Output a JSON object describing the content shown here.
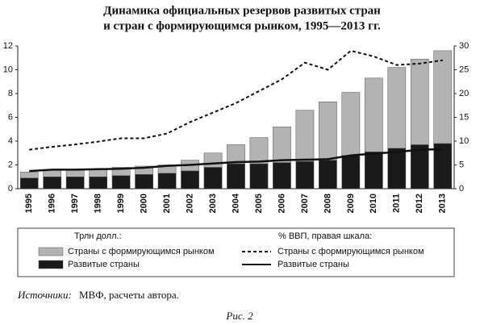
{
  "chart_data": {
    "type": "combo",
    "title_lines": [
      "Динамика официальных резервов развитых стран",
      "и стран с формирующимся рынком, 1995—2013 гг."
    ],
    "categories": [
      "1995",
      "1996",
      "1997",
      "1998",
      "1999",
      "2000",
      "2001",
      "2002",
      "2003",
      "2004",
      "2005",
      "2006",
      "2007",
      "2008",
      "2009",
      "2010",
      "2011",
      "2012",
      "2013"
    ],
    "stacked": true,
    "series": [
      {
        "name": "Страны с формирующимся рынком",
        "type": "bar",
        "color": "#b3b3b3",
        "values": [
          0.5,
          0.6,
          0.6,
          0.6,
          0.7,
          0.7,
          0.7,
          0.9,
          1.2,
          1.6,
          2.2,
          3.0,
          4.3,
          4.9,
          5.3,
          6.2,
          6.8,
          7.2,
          7.8
        ]
      },
      {
        "name": "Развитые страны",
        "type": "bar",
        "color": "#1a1a1a",
        "values": [
          0.9,
          1.0,
          1.0,
          1.0,
          1.1,
          1.2,
          1.3,
          1.5,
          1.8,
          2.1,
          2.1,
          2.2,
          2.3,
          2.4,
          2.8,
          3.1,
          3.4,
          3.7,
          3.8
        ]
      },
      {
        "name": "Страны с формирующимся рынком",
        "type": "line",
        "axis": "y2",
        "dash": "dashed",
        "color": "#111111",
        "values": [
          8.2,
          8.8,
          9.3,
          9.9,
          10.6,
          10.6,
          11.6,
          14,
          16,
          18,
          20.5,
          23,
          26.5,
          25,
          29,
          27.8,
          26,
          26.3,
          27
        ]
      },
      {
        "name": "Развитые страны",
        "type": "line",
        "axis": "y2",
        "dash": "solid",
        "color": "#111111",
        "values": [
          3.7,
          4.0,
          4.0,
          4.1,
          4.2,
          4.4,
          4.8,
          5.0,
          5.3,
          5.6,
          5.7,
          6.0,
          6.1,
          6.2,
          7.0,
          7.4,
          7.7,
          8.2,
          8.3
        ]
      }
    ],
    "ylim": [
      0,
      12
    ],
    "yticks": [
      0,
      2,
      4,
      6,
      8,
      10,
      12
    ],
    "y2lim": [
      0,
      30
    ],
    "y2ticks": [
      0,
      5,
      10,
      15,
      20,
      25,
      30
    ],
    "legend_titles": {
      "bars": "Трлн долл.:",
      "lines": "% ВВП, правая шкала:"
    },
    "source_label": "Источники:",
    "source_text": "МВФ, расчеты автора.",
    "caption": "Рис. 2"
  }
}
